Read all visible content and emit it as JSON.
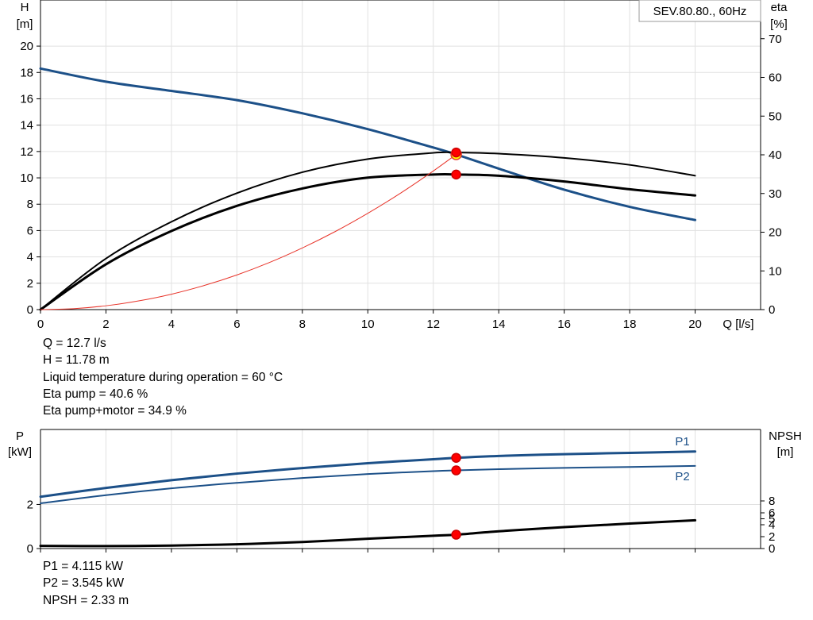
{
  "chart_data": [
    {
      "type": "line",
      "title": "SEV.80.80., 60Hz",
      "xlabel": "Q [l/s]",
      "ylabel_left": [
        "H",
        "[m]"
      ],
      "ylabel_right": [
        "eta",
        "[%]"
      ],
      "xlim": [
        0,
        22
      ],
      "ylim_left": [
        0,
        23.5
      ],
      "ylim_right": [
        0,
        80
      ],
      "x_ticks": [
        0,
        2,
        4,
        6,
        8,
        10,
        12,
        14,
        16,
        18,
        20
      ],
      "y_ticks_left": [
        0,
        2,
        4,
        6,
        8,
        10,
        12,
        14,
        16,
        18,
        20
      ],
      "y_ticks_right": [
        0,
        10,
        20,
        30,
        40,
        50,
        60,
        70
      ],
      "grid": true,
      "series": [
        {
          "role": "head",
          "axis": "left",
          "color": "#1c5088",
          "width": 3,
          "x": [
            0,
            2,
            4,
            6,
            8,
            10,
            12,
            12.7,
            14,
            16,
            18,
            20
          ],
          "y": [
            18.3,
            17.3,
            16.6,
            15.9,
            14.9,
            13.7,
            12.3,
            11.78,
            10.7,
            9.1,
            7.8,
            6.8
          ]
        },
        {
          "role": "eta-pump",
          "axis": "right",
          "color": "#000000",
          "width": 2,
          "x": [
            0,
            2,
            4,
            6,
            8,
            10,
            12,
            12.7,
            14,
            16,
            18,
            20
          ],
          "y": [
            0,
            13.2,
            22.7,
            30.1,
            35.5,
            38.9,
            40.5,
            40.6,
            40.3,
            39.2,
            37.4,
            34.6
          ]
        },
        {
          "role": "eta-pump-motor",
          "axis": "right",
          "color": "#000000",
          "width": 3,
          "x": [
            0,
            2,
            4,
            6,
            8,
            10,
            12,
            12.7,
            14,
            16,
            18,
            20
          ],
          "y": [
            0,
            11.7,
            20.3,
            26.8,
            31.3,
            34.1,
            34.9,
            34.9,
            34.6,
            33.1,
            31.1,
            29.5
          ]
        },
        {
          "role": "system-curve",
          "axis": "left",
          "color": "#e8342a",
          "width": 1,
          "x": [
            0,
            1,
            2,
            3,
            4,
            5,
            6,
            7,
            8,
            9,
            10,
            11,
            12,
            12.7
          ],
          "y": [
            0,
            0.07,
            0.29,
            0.66,
            1.17,
            1.83,
            2.63,
            3.58,
            4.68,
            5.92,
            7.31,
            8.84,
            10.52,
            11.78
          ]
        }
      ],
      "operating_points": [
        {
          "x": 12.7,
          "y": 11.78,
          "axis": "left",
          "fill": "#ffff00",
          "stroke": "#e8342a"
        },
        {
          "x": 12.7,
          "y": 40.6,
          "axis": "right",
          "fill": "#ff0000",
          "stroke": "#cc0000"
        },
        {
          "x": 12.7,
          "y": 34.9,
          "axis": "right",
          "fill": "#ff0000",
          "stroke": "#cc0000"
        }
      ]
    },
    {
      "type": "line",
      "title": "",
      "xlabel": "",
      "ylabel_left": [
        "P",
        "[kW]"
      ],
      "ylabel_right": [
        "NPSH",
        "[m]"
      ],
      "xlim": [
        0,
        22
      ],
      "ylim_left": [
        0,
        5.4
      ],
      "ylim_right": [
        0,
        20
      ],
      "x_ticks": [
        0,
        2,
        4,
        6,
        8,
        10,
        12,
        14,
        16,
        18,
        20
      ],
      "y_ticks_left": [
        0,
        2
      ],
      "y_ticks_right": [
        0,
        2,
        4,
        5,
        6,
        8
      ],
      "grid": true,
      "series": [
        {
          "name": "P1",
          "axis": "left",
          "color": "#1c5088",
          "width": 3,
          "x": [
            0,
            2,
            4,
            6,
            8,
            10,
            12,
            12.7,
            14,
            16,
            18,
            20
          ],
          "y": [
            2.35,
            2.75,
            3.1,
            3.4,
            3.65,
            3.87,
            4.05,
            4.115,
            4.2,
            4.28,
            4.34,
            4.4
          ]
        },
        {
          "name": "P2",
          "axis": "left",
          "color": "#1c5088",
          "width": 2,
          "x": [
            0,
            2,
            4,
            6,
            8,
            10,
            12,
            12.7,
            14,
            16,
            18,
            20
          ],
          "y": [
            2.05,
            2.42,
            2.73,
            2.98,
            3.2,
            3.38,
            3.51,
            3.545,
            3.6,
            3.66,
            3.7,
            3.75
          ]
        },
        {
          "role": "npsh",
          "axis": "right",
          "color": "#000000",
          "width": 3,
          "x": [
            0,
            2,
            4,
            6,
            8,
            10,
            12,
            12.7,
            14,
            16,
            18,
            20
          ],
          "y": [
            0.45,
            0.42,
            0.5,
            0.72,
            1.1,
            1.65,
            2.15,
            2.33,
            2.9,
            3.6,
            4.2,
            4.75
          ]
        }
      ],
      "operating_points": [
        {
          "x": 12.7,
          "y": 4.115,
          "axis": "left",
          "fill": "#ff0000",
          "stroke": "#cc0000"
        },
        {
          "x": 12.7,
          "y": 3.545,
          "axis": "left",
          "fill": "#ff0000",
          "stroke": "#cc0000"
        },
        {
          "x": 12.7,
          "y": 2.33,
          "axis": "right",
          "fill": "#ff0000",
          "stroke": "#cc0000"
        }
      ]
    }
  ],
  "info_top": [
    "Q = 12.7 l/s",
    "H = 11.78 m",
    "Liquid temperature during operation = 60 °C",
    "Eta pump = 40.6 %",
    "Eta pump+motor = 34.9 %"
  ],
  "info_bottom": [
    "P1 = 4.115 kW",
    "P2 = 3.545 kW",
    "NPSH = 2.33 m"
  ]
}
